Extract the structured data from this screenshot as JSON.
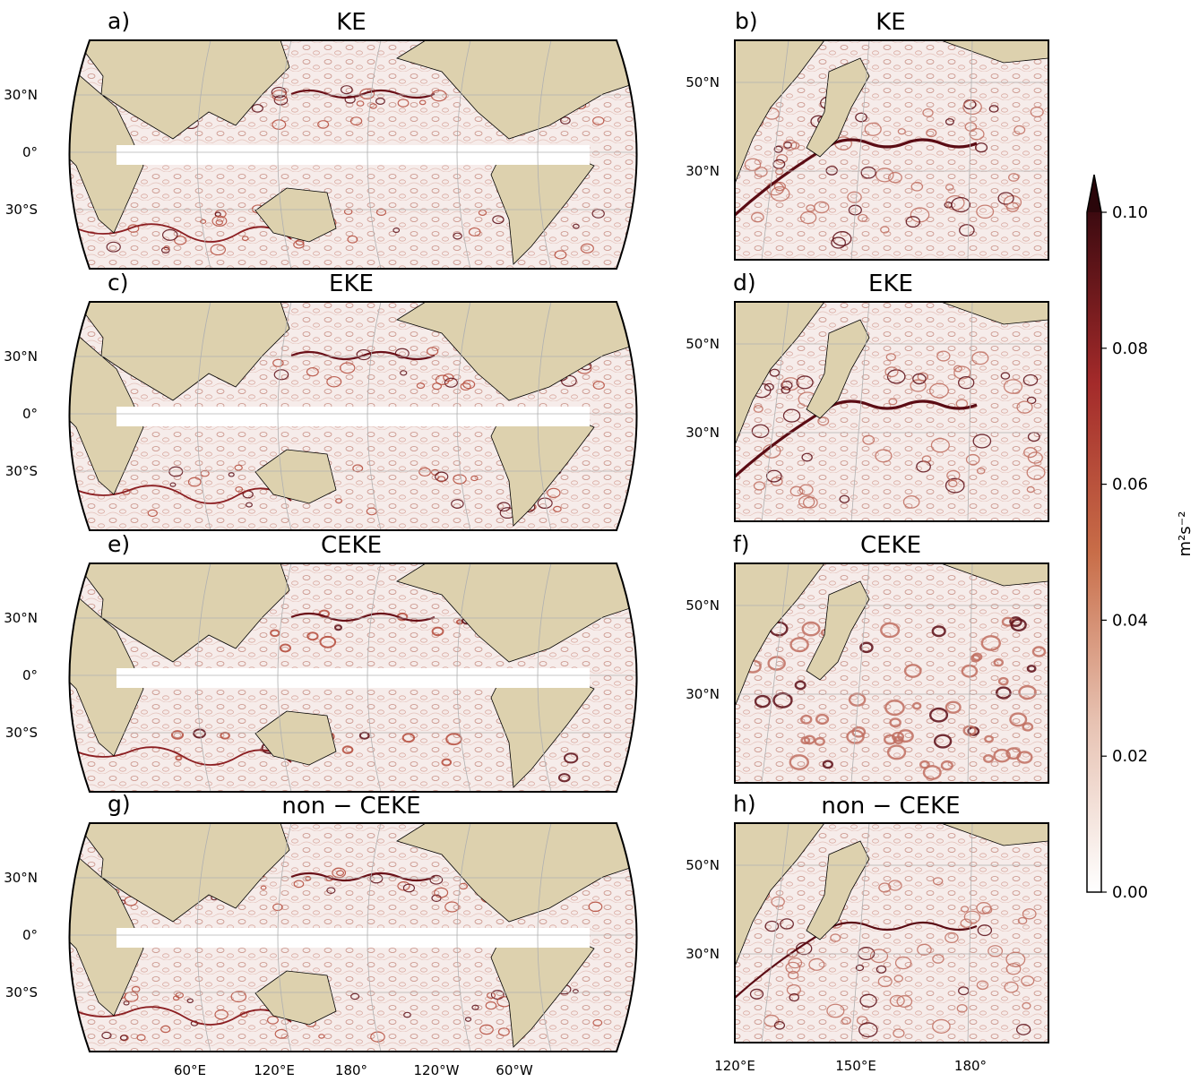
{
  "chart_data": {
    "type": "heatmap",
    "colorbar": {
      "label": "m²s⁻²",
      "ticks": [
        "0.00",
        "0.02",
        "0.04",
        "0.06",
        "0.08",
        "0.10"
      ],
      "range": [
        0.0,
        0.1
      ],
      "extend": "max",
      "colors": [
        "#ffffff",
        "#d9a08a",
        "#c0532b",
        "#a01a2a",
        "#400a10"
      ]
    },
    "land_color": "#ddd1ae",
    "grid": true,
    "panels": [
      {
        "letter": "a)",
        "title": "KE",
        "region": "global"
      },
      {
        "letter": "b)",
        "title": "KE",
        "region": "kuroshio"
      },
      {
        "letter": "c)",
        "title": "EKE",
        "region": "global"
      },
      {
        "letter": "d)",
        "title": "EKE",
        "region": "kuroshio"
      },
      {
        "letter": "e)",
        "title": "CEKE",
        "region": "global"
      },
      {
        "letter": "f)",
        "title": "CEKE",
        "region": "kuroshio"
      },
      {
        "letter": "g)",
        "title": "non − CEKE",
        "region": "global"
      },
      {
        "letter": "h)",
        "title": "non − CEKE",
        "region": "kuroshio"
      }
    ],
    "global_lat_ticks": [
      "30°N",
      "0°",
      "30°S"
    ],
    "global_lon_ticks": [
      "60°E",
      "120°E",
      "180°",
      "120°W",
      "60°W"
    ],
    "regional_lat_ticks": [
      "50°N",
      "30°N"
    ],
    "regional_lon_ticks": [
      "120°E",
      "150°E",
      "180°"
    ]
  }
}
